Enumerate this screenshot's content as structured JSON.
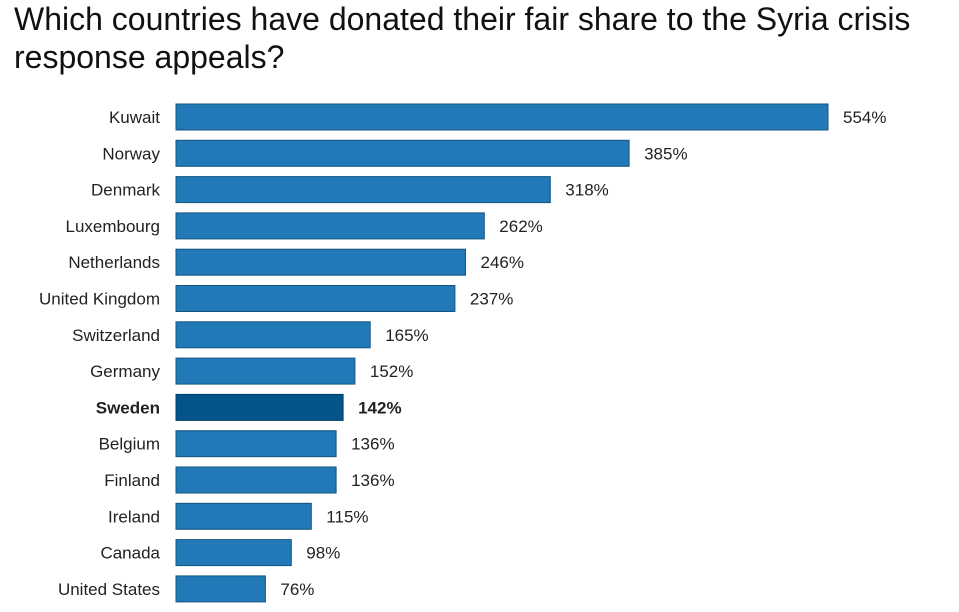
{
  "chart_data": {
    "type": "bar",
    "orientation": "horizontal",
    "title": "Which countries have donated their fair share to the Syria crisis response appeals?",
    "categories": [
      "Kuwait",
      "Norway",
      "Denmark",
      "Luxembourg",
      "Netherlands",
      "United Kingdom",
      "Switzerland",
      "Germany",
      "Sweden",
      "Belgium",
      "Finland",
      "Ireland",
      "Canada",
      "United States"
    ],
    "values": [
      554,
      385,
      318,
      262,
      246,
      237,
      165,
      152,
      142,
      136,
      136,
      115,
      98,
      76
    ],
    "value_labels": [
      "554%",
      "385%",
      "318%",
      "262%",
      "246%",
      "237%",
      "165%",
      "152%",
      "142%",
      "136%",
      "136%",
      "115%",
      "98%",
      "76%"
    ],
    "unit": "%",
    "highlighted_category": "Sweden",
    "xlim": [
      0,
      554
    ],
    "grid": false,
    "legend": "none",
    "colors": {
      "bar": "#2179b8",
      "bar_stroke": "#14557f",
      "highlight": "#02548a",
      "highlight_stroke": "#013f68"
    }
  }
}
